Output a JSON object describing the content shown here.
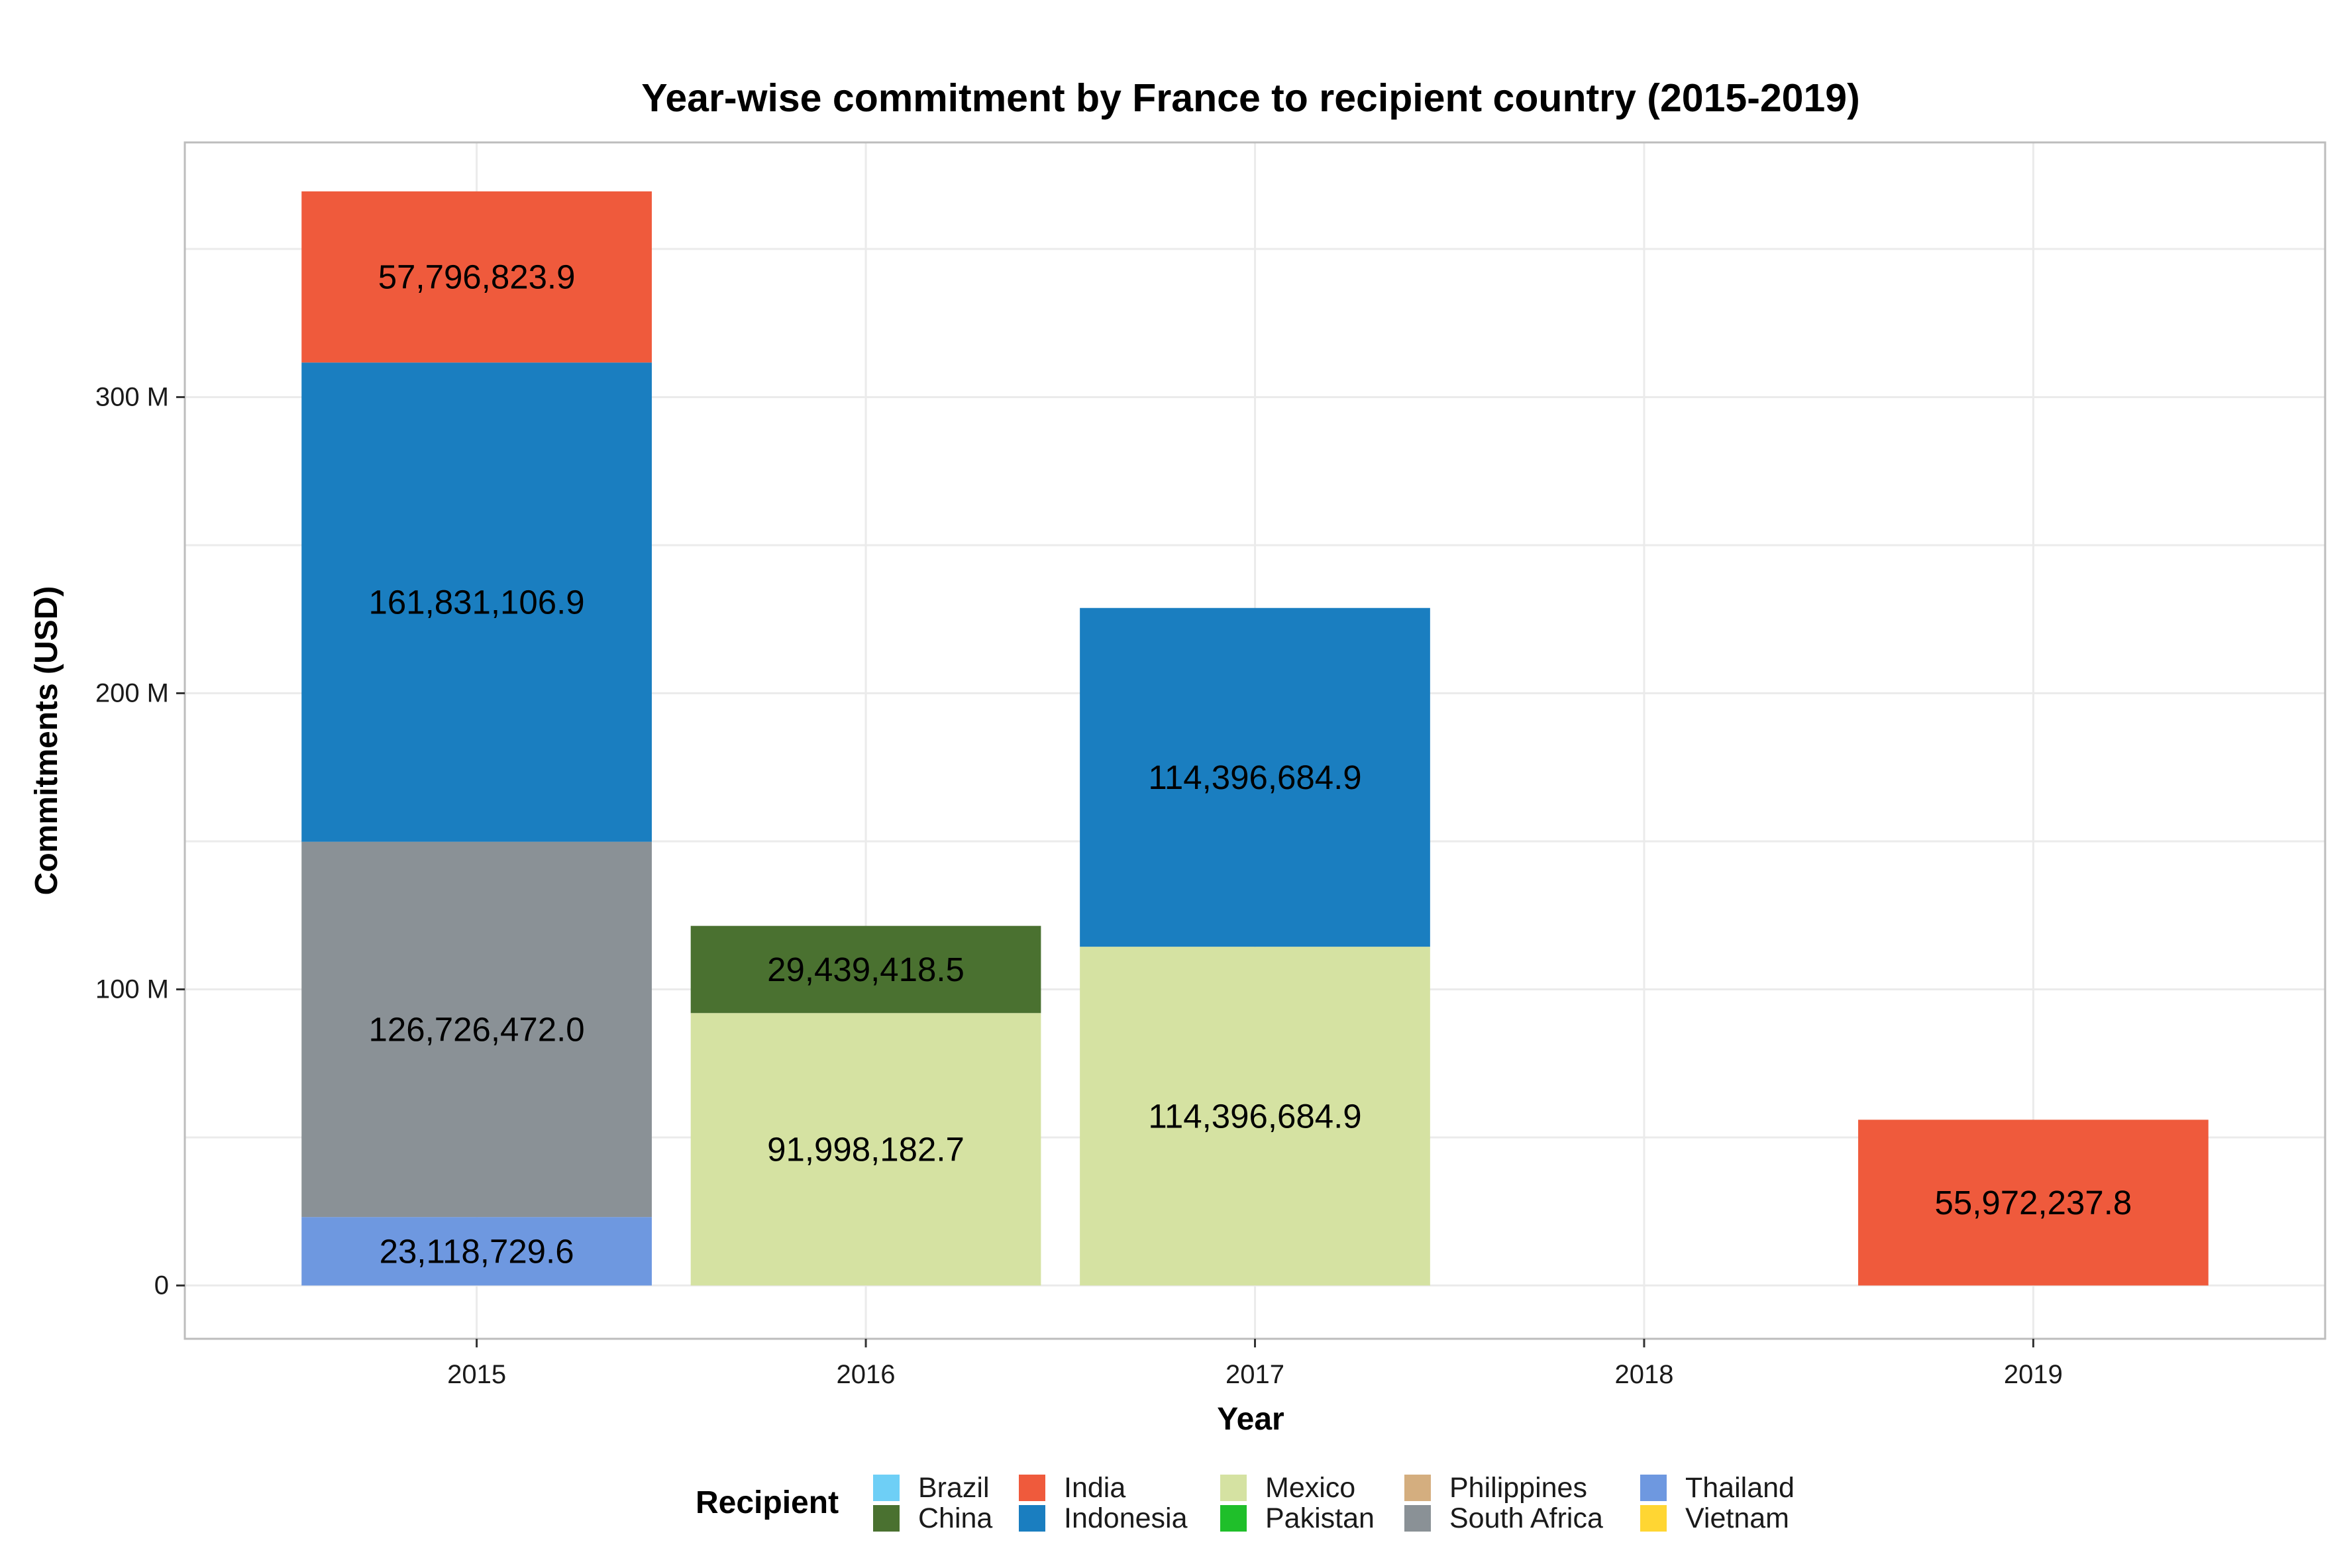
{
  "chart_data": {
    "type": "bar",
    "stacked": true,
    "title": "Year-wise commitment by France to recipient country (2015-2019)",
    "xlabel": "Year",
    "ylabel": "Commitments (USD)",
    "categories": [
      "2015",
      "2016",
      "2017",
      "2018",
      "2019"
    ],
    "y_ticks": [
      0,
      100000000,
      200000000,
      300000000
    ],
    "y_tick_labels": [
      "0",
      "100 M",
      "200 M",
      "300 M"
    ],
    "ylim": [
      -18000000,
      386000000
    ],
    "grid": true,
    "legend_position": "bottom",
    "legend_title": "Recipient",
    "legend": [
      {
        "name": "Brazil",
        "color": "#6ECFF6"
      },
      {
        "name": "China",
        "color": "#4A7130"
      },
      {
        "name": "India",
        "color": "#EF5A3C"
      },
      {
        "name": "Indonesia",
        "color": "#1A7EC0"
      },
      {
        "name": "Mexico",
        "color": "#D5E2A2"
      },
      {
        "name": "Pakistan",
        "color": "#1FBF2A"
      },
      {
        "name": "Philippines",
        "color": "#D4AE7F"
      },
      {
        "name": "South Africa",
        "color": "#8A9196"
      },
      {
        "name": "Thailand",
        "color": "#6E98E0"
      },
      {
        "name": "Vietnam",
        "color": "#FFD633"
      }
    ],
    "series": [
      {
        "name": "Thailand",
        "values": [
          23118729.6,
          0,
          0,
          0,
          0
        ],
        "labels": [
          "23,118,729.6",
          "",
          "",
          "",
          ""
        ]
      },
      {
        "name": "South Africa",
        "values": [
          126726472.0,
          0,
          0,
          0,
          0
        ],
        "labels": [
          "126,726,472.0",
          "",
          "",
          "",
          ""
        ]
      },
      {
        "name": "Mexico",
        "values": [
          0,
          91998182.7,
          114396684.9,
          0,
          0
        ],
        "labels": [
          "",
          "91,998,182.7",
          "114,396,684.9",
          "",
          ""
        ]
      },
      {
        "name": "China",
        "values": [
          0,
          29439418.5,
          0,
          0,
          0
        ],
        "labels": [
          "",
          "29,439,418.5",
          "",
          "",
          ""
        ]
      },
      {
        "name": "Indonesia",
        "values": [
          161831106.9,
          0,
          114396684.9,
          0,
          0
        ],
        "labels": [
          "161,831,106.9",
          "",
          "114,396,684.9",
          "",
          ""
        ]
      },
      {
        "name": "India",
        "values": [
          57796823.9,
          0,
          0,
          0,
          55972237.8
        ],
        "labels": [
          "57,796,823.9",
          "",
          "",
          "",
          "55,972,237.8"
        ]
      }
    ]
  }
}
